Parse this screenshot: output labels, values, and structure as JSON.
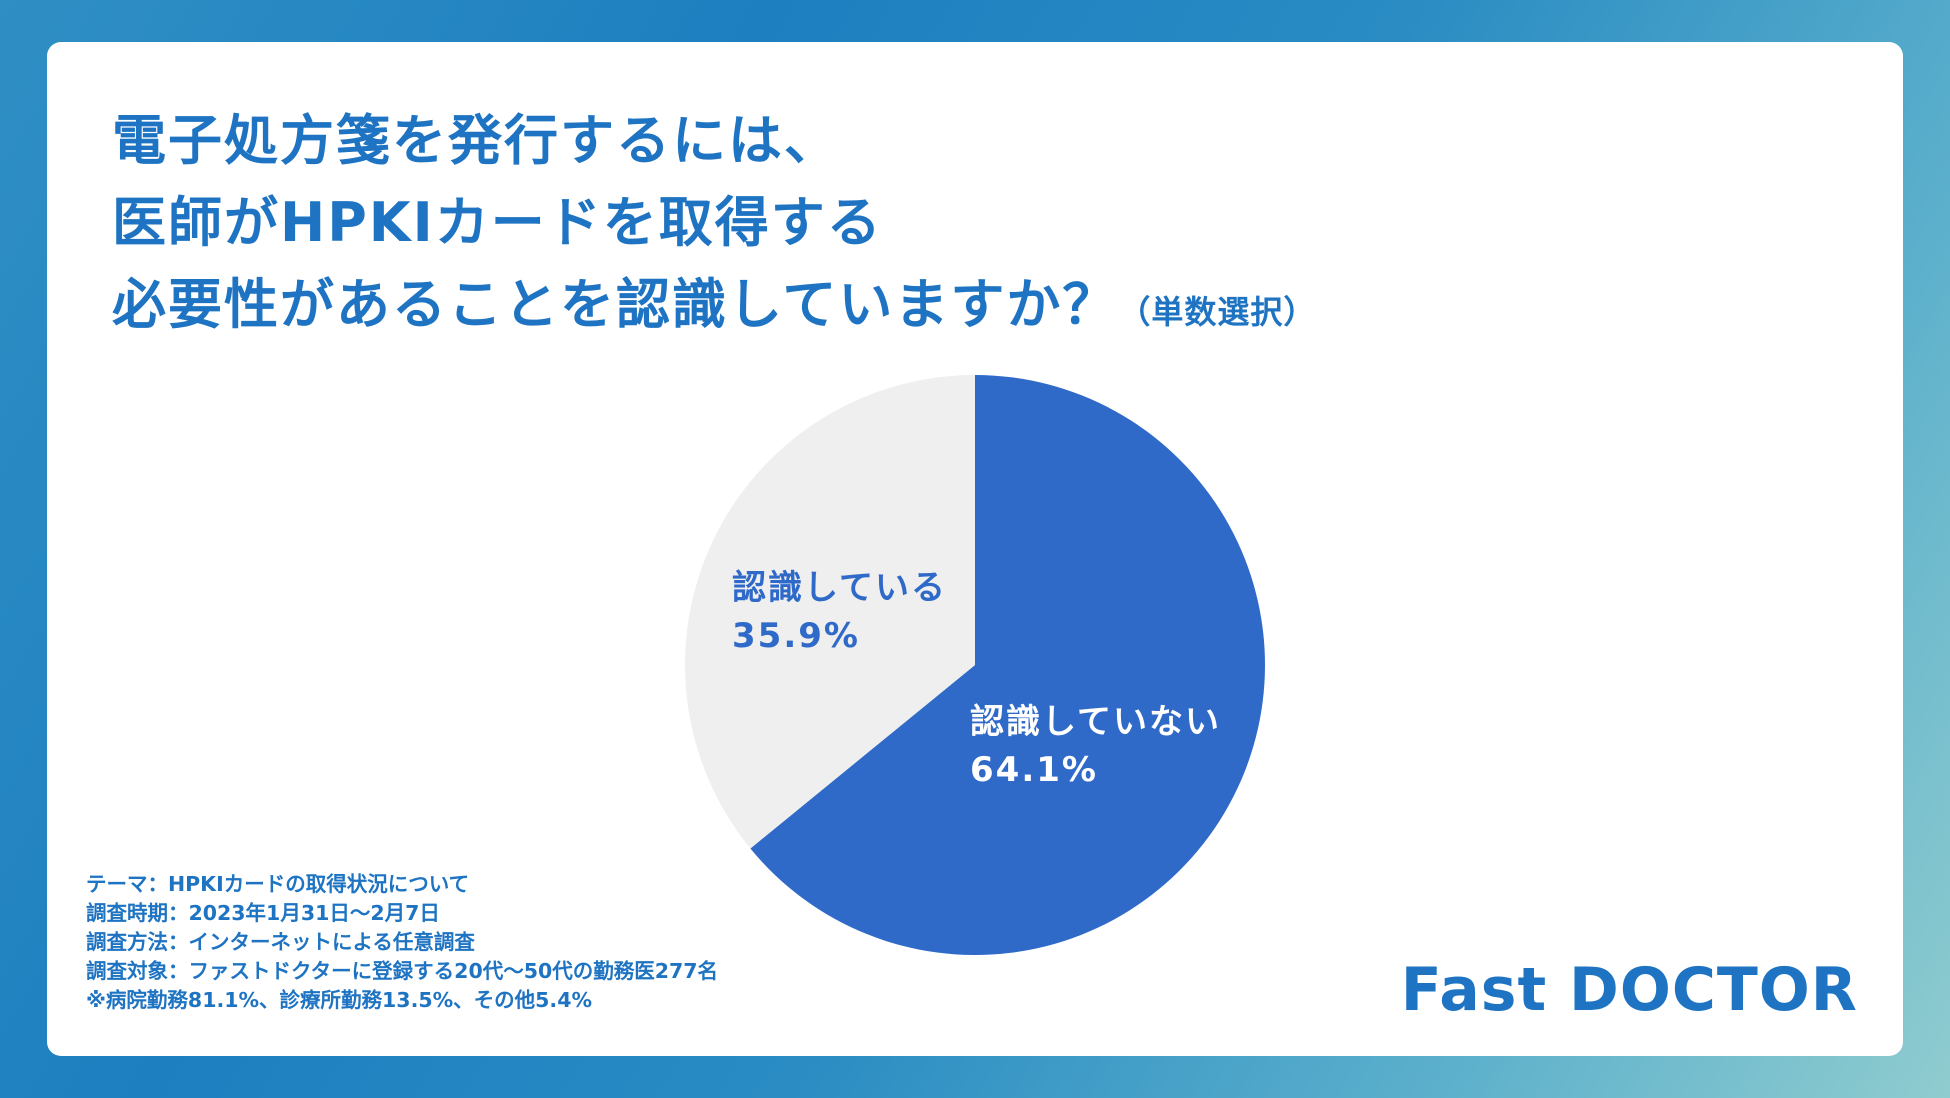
{
  "title": {
    "line1": "電子処方箋を発行するには、",
    "line2": "医師がHPKIカードを取得する",
    "line3": "必要性があることを認識していますか？",
    "note": "（単数選択）"
  },
  "chart_data": {
    "type": "pie",
    "categories": [
      "認識していない",
      "認識している"
    ],
    "values": [
      64.1,
      35.9
    ],
    "value_labels": [
      "64.1%",
      "35.9%"
    ],
    "colors": [
      "#2f6ac9",
      "#efefef"
    ],
    "label_colors": [
      "#ffffff",
      "#2f6ac9"
    ],
    "start_angle": "12 o'clock, clockwise"
  },
  "survey": {
    "theme": "テーマ：HPKIカードの取得状況について",
    "period": "調査時期：2023年1月31日〜2月7日",
    "method": "調査方法：インターネットによる任意調査",
    "target": "調査対象：ファストドクターに登録する20代〜50代の勤務医277名",
    "breakdown": "※病院勤務81.1%、診療所勤務13.5%、その他5.4%"
  },
  "brand": "Fast DOCTOR"
}
